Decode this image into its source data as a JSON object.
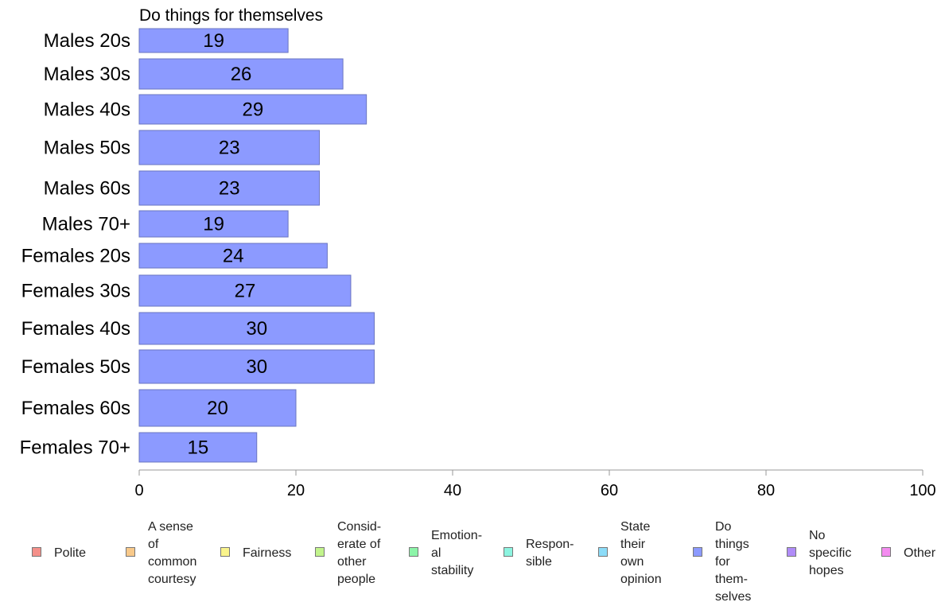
{
  "chart_data": {
    "type": "bar",
    "orientation": "horizontal",
    "title": "Do things for themselves",
    "categories": [
      "Males 20s",
      "Males 30s",
      "Males 40s",
      "Males 50s",
      "Males 60s",
      "Males 70+",
      "Females 20s",
      "Females 30s",
      "Females 40s",
      "Females 50s",
      "Females 60s",
      "Females 70+"
    ],
    "series": [
      {
        "name": "Do things for themselves",
        "values": [
          19,
          26,
          29,
          23,
          23,
          19,
          24,
          27,
          30,
          30,
          20,
          15
        ],
        "labels": [
          "19",
          "26",
          "29",
          "23",
          "23",
          "19",
          "24",
          "27",
          "30",
          "30",
          "20",
          "15"
        ]
      }
    ],
    "xlim": [
      0,
      100
    ],
    "xticks": [
      0,
      20,
      40,
      60,
      80,
      100
    ],
    "xtick_labels": [
      "0",
      "20",
      "40",
      "60",
      "80",
      "100"
    ],
    "bar_color": "#8c9aff",
    "bar_edge_color": "#6a75c0",
    "grid": false,
    "legend_position": "bottom",
    "legend": [
      {
        "label": "Polite",
        "color": "#f4908a"
      },
      {
        "label": "A sense\nof\ncommon\ncourtesy",
        "color": "#f8c98a"
      },
      {
        "label": "Fairness",
        "color": "#faf48c"
      },
      {
        "label": "Consid-\nerate of\nother\npeople",
        "color": "#c2f48c"
      },
      {
        "label": "Emotion-\nal\nstability",
        "color": "#8cf4a8"
      },
      {
        "label": "Respon-\nsible",
        "color": "#8cf4e0"
      },
      {
        "label": "State\ntheir\nown\nopinion",
        "color": "#8cdcf8"
      },
      {
        "label": "Do\nthings\nfor\nthem-\nselves",
        "color": "#8c9aff"
      },
      {
        "label": "No\nspecific\nhopes",
        "color": "#b08cf8"
      },
      {
        "label": "Other",
        "color": "#f48cf0"
      }
    ]
  }
}
